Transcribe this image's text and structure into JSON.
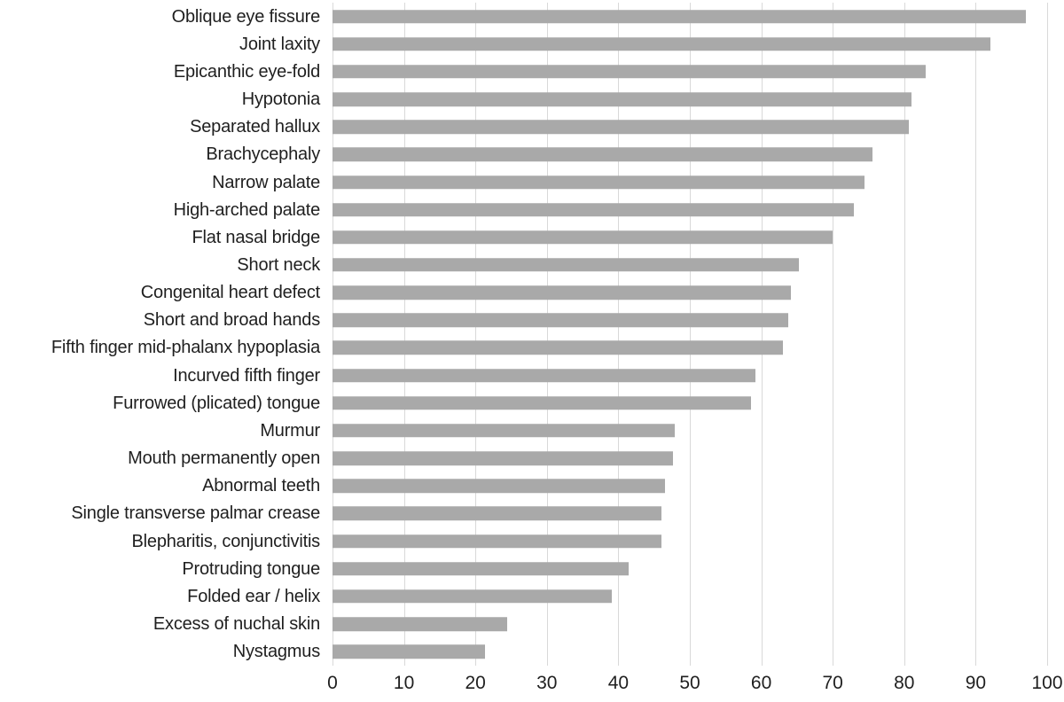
{
  "chart_data": {
    "type": "bar",
    "orientation": "horizontal",
    "title": "",
    "xlabel": "",
    "ylabel": "",
    "xlim": [
      0,
      100
    ],
    "x_ticks": [
      0,
      10,
      20,
      30,
      40,
      50,
      60,
      70,
      80,
      90,
      100
    ],
    "grid": true,
    "legend": false,
    "categories": [
      "Oblique eye fissure",
      "Joint laxity",
      "Epicanthic eye-fold",
      "Hypotonia",
      "Separated hallux",
      "Brachycephaly",
      "Narrow palate",
      "High-arched palate",
      "Flat nasal bridge",
      "Short neck",
      "Congenital heart defect",
      "Short and broad hands",
      "Fifth finger mid-phalanx hypoplasia",
      "Incurved fifth finger",
      "Furrowed (plicated) tongue",
      "Murmur",
      "Mouth permanently open",
      "Abnormal teeth",
      "Single transverse palmar crease",
      "Blepharitis, conjunctivitis",
      "Protruding tongue",
      "Folded ear / helix",
      "Excess of nuchal skin",
      "Nystagmus"
    ],
    "values": [
      97,
      92,
      83,
      81,
      80.7,
      75.5,
      74.5,
      73,
      70,
      65.3,
      64.1,
      63.8,
      63,
      59.2,
      58.5,
      47.9,
      47.6,
      46.5,
      46,
      46,
      41.5,
      39.1,
      24.4,
      21.3
    ],
    "colors": {
      "bar": "#a9a9a9",
      "gridline": "#d9d9d9",
      "text": "#1f1f1f",
      "background": "#ffffff"
    }
  }
}
